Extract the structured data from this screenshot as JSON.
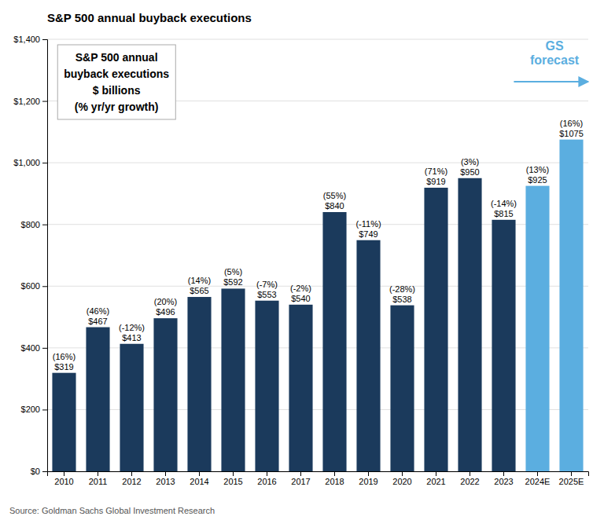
{
  "chart_data": {
    "type": "bar",
    "title": "S&P 500 annual buyback executions",
    "source": "Source: Goldman Sachs Global Investment Research",
    "annotations": [
      {
        "lines": [
          "S&P 500 annual",
          "buyback executions",
          "$ billions",
          "(% yr/yr growth)"
        ]
      },
      {
        "lines": [
          "GS",
          "forecast"
        ],
        "color": "#5baee0"
      }
    ],
    "categories": [
      "2010",
      "2011",
      "2012",
      "2013",
      "2014",
      "2015",
      "2016",
      "2017",
      "2018",
      "2019",
      "2020",
      "2021",
      "2022",
      "2023",
      "2024E",
      "2025E"
    ],
    "values": [
      319,
      467,
      413,
      496,
      565,
      592,
      553,
      540,
      840,
      749,
      538,
      919,
      950,
      815,
      925,
      1075
    ],
    "value_labels": [
      "$319",
      "$467",
      "$413",
      "$496",
      "$565",
      "$592",
      "$553",
      "$540",
      "$840",
      "$749",
      "$538",
      "$919",
      "$950",
      "$815",
      "$925",
      "$1075"
    ],
    "growth_labels": [
      "(16%)",
      "(46%)",
      "(-12%)",
      "(20%)",
      "(14%)",
      "(5%)",
      "(-7%)",
      "(-2%)",
      "(55%)",
      "(-11%)",
      "(-28%)",
      "(71%)",
      "(3%)",
      "(-14%)",
      "(13%)",
      "(16%)"
    ],
    "colors": [
      "#1b3a5c",
      "#1b3a5c",
      "#1b3a5c",
      "#1b3a5c",
      "#1b3a5c",
      "#1b3a5c",
      "#1b3a5c",
      "#1b3a5c",
      "#1b3a5c",
      "#1b3a5c",
      "#1b3a5c",
      "#1b3a5c",
      "#1b3a5c",
      "#1b3a5c",
      "#5baee0",
      "#5baee0"
    ],
    "ylim": [
      0,
      1400
    ],
    "yticks": [
      {
        "value": 0,
        "label": "$0"
      },
      {
        "value": 200,
        "label": "$200"
      },
      {
        "value": 400,
        "label": "$400"
      },
      {
        "value": 600,
        "label": "$600"
      },
      {
        "value": 800,
        "label": "$800"
      },
      {
        "value": 1000,
        "label": "$1,000"
      },
      {
        "value": 1200,
        "label": "$1,200"
      },
      {
        "value": 1400,
        "label": "$1,400"
      }
    ],
    "grid": true,
    "data_labels": true
  }
}
